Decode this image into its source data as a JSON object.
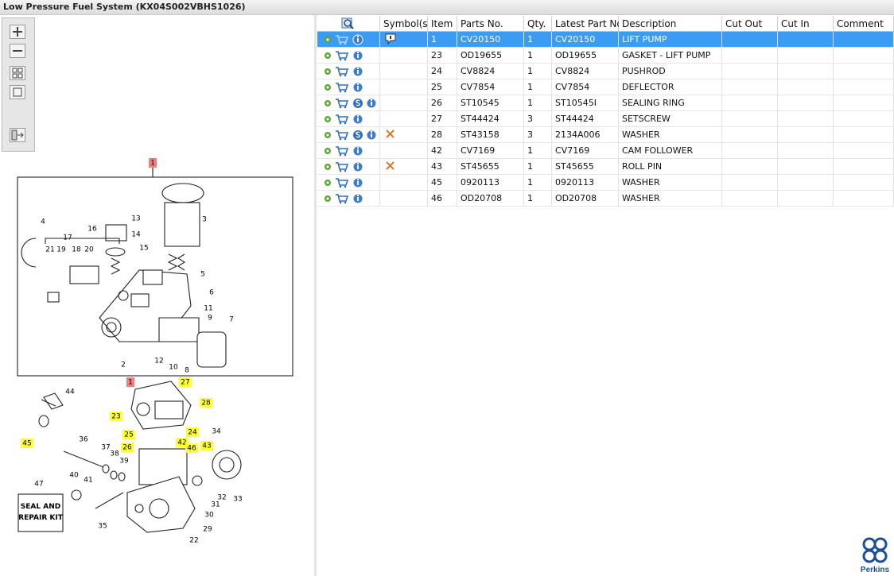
{
  "header": {
    "title": "Low Pressure Fuel System (KX04S002VBHS1026)"
  },
  "table": {
    "columns": [
      "Symbol(s)",
      "Item",
      "Parts No.",
      "Qty.",
      "Latest Part No.",
      "Description",
      "Cut Out",
      "Cut In",
      "Comment"
    ],
    "selected_row": 0,
    "rows": [
      {
        "item": "1",
        "part_no": "CV20150",
        "qty": "1",
        "latest": "CV20150",
        "description": "LIFT PUMP",
        "s_icon": false,
        "symbol": "note"
      },
      {
        "item": "23",
        "part_no": "OD19655",
        "qty": "1",
        "latest": "OD19655",
        "description": "GASKET - LIFT PUMP",
        "s_icon": false
      },
      {
        "item": "24",
        "part_no": "CV8824",
        "qty": "1",
        "latest": "CV8824",
        "description": "PUSHROD",
        "s_icon": false
      },
      {
        "item": "25",
        "part_no": "CV7854",
        "qty": "1",
        "latest": "CV7854",
        "description": "DEFLECTOR",
        "s_icon": false
      },
      {
        "item": "26",
        "part_no": "ST10545",
        "qty": "1",
        "latest": "ST10545I",
        "description": "SEALING RING",
        "s_icon": true
      },
      {
        "item": "27",
        "part_no": "ST44424",
        "qty": "3",
        "latest": "ST44424",
        "description": "SETSCREW",
        "s_icon": false
      },
      {
        "item": "28",
        "part_no": "ST43158",
        "qty": "3",
        "latest": "2134A006",
        "description": "WASHER",
        "s_icon": true,
        "symbol": "cross"
      },
      {
        "item": "42",
        "part_no": "CV7169",
        "qty": "1",
        "latest": "CV7169",
        "description": "CAM FOLLOWER",
        "s_icon": false
      },
      {
        "item": "43",
        "part_no": "ST45655",
        "qty": "1",
        "latest": "ST45655",
        "description": "ROLL PIN",
        "s_icon": false,
        "symbol": "cross"
      },
      {
        "item": "45",
        "part_no": "0920113",
        "qty": "1",
        "latest": "0920113",
        "description": "WASHER",
        "s_icon": false
      },
      {
        "item": "46",
        "part_no": "OD20708",
        "qty": "1",
        "latest": "OD20708",
        "description": "WASHER",
        "s_icon": false
      }
    ]
  },
  "diagram": {
    "kit_label": "SEAL AND REPAIR KIT",
    "callouts": [
      {
        "label": "1",
        "style": "red"
      },
      {
        "label": "4"
      },
      {
        "label": "13"
      },
      {
        "label": "3"
      },
      {
        "label": "16"
      },
      {
        "label": "14"
      },
      {
        "label": "17"
      },
      {
        "label": "15"
      },
      {
        "label": "21"
      },
      {
        "label": "19"
      },
      {
        "label": "18"
      },
      {
        "label": "20"
      },
      {
        "label": "5"
      },
      {
        "label": "6"
      },
      {
        "label": "11"
      },
      {
        "label": "9"
      },
      {
        "label": "7"
      },
      {
        "label": "12"
      },
      {
        "label": "10"
      },
      {
        "label": "8"
      },
      {
        "label": "2"
      },
      {
        "label": "1",
        "style": "red"
      },
      {
        "label": "27",
        "style": "yellow"
      },
      {
        "label": "44"
      },
      {
        "label": "28",
        "style": "yellow"
      },
      {
        "label": "23",
        "style": "yellow"
      },
      {
        "label": "25",
        "style": "yellow"
      },
      {
        "label": "24",
        "style": "yellow"
      },
      {
        "label": "42",
        "style": "yellow"
      },
      {
        "label": "34"
      },
      {
        "label": "45",
        "style": "yellow"
      },
      {
        "label": "36"
      },
      {
        "label": "26",
        "style": "yellow"
      },
      {
        "label": "46",
        "style": "yellow"
      },
      {
        "label": "43",
        "style": "yellow"
      },
      {
        "label": "37"
      },
      {
        "label": "38"
      },
      {
        "label": "39"
      },
      {
        "label": "47"
      },
      {
        "label": "40"
      },
      {
        "label": "41"
      },
      {
        "label": "32"
      },
      {
        "label": "33"
      },
      {
        "label": "31"
      },
      {
        "label": "30"
      },
      {
        "label": "35"
      },
      {
        "label": "29"
      },
      {
        "label": "22"
      }
    ]
  },
  "brand": "Perkins"
}
